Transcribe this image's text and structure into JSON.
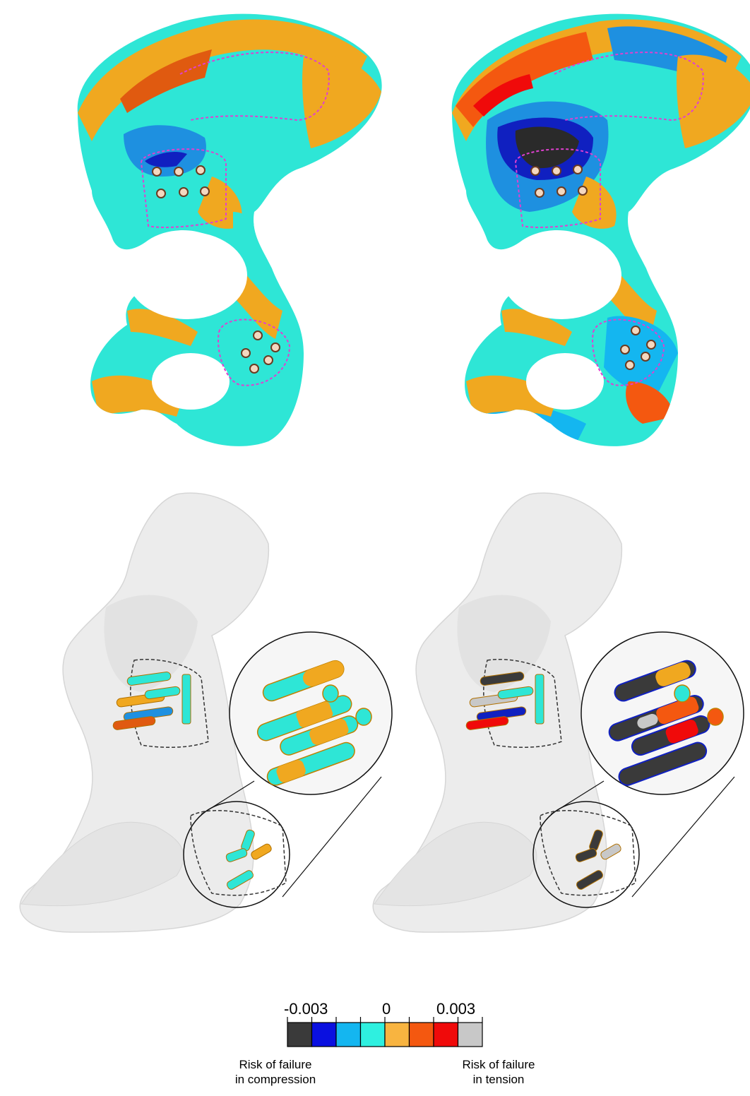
{
  "figure": {
    "panels": [
      {
        "id": "top-left",
        "content": "pelvis-strain-map-model-a"
      },
      {
        "id": "top-right",
        "content": "pelvis-strain-map-model-b"
      },
      {
        "id": "bottom-left",
        "content": "screw-strain-map-model-a"
      },
      {
        "id": "bottom-right",
        "content": "screw-strain-map-model-b"
      }
    ]
  },
  "legend": {
    "tick_min": "-0.003",
    "tick_mid": "0",
    "tick_max": "0.003",
    "left_caption_line1": "Risk of failure",
    "left_caption_line2": "in compression",
    "right_caption_line1": "Risk of failure",
    "right_caption_line2": "in tension",
    "colors": [
      "#3a3a3a",
      "#0a10e0",
      "#14b6f0",
      "#2ef0e0",
      "#f8b440",
      "#f45810",
      "#f00a0a",
      "#c8c8c8"
    ]
  },
  "palette": {
    "bone_cyan": "#2ee6d6",
    "bone_orange": "#f0a820",
    "bone_blue": "#1e90e0",
    "bone_darkblue": "#1020c0",
    "bone_red": "#e03a10",
    "bone_dark": "#2a2a2a",
    "ghost_bone": "#ececec",
    "outline_magenta": "#e040d0"
  }
}
